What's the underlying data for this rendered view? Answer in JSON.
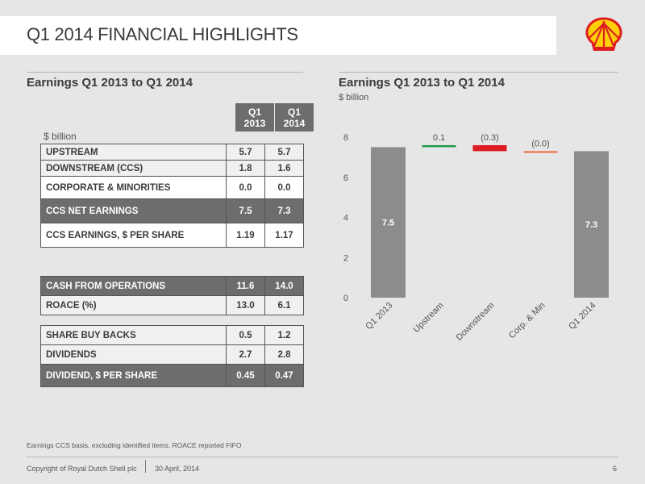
{
  "header": {
    "title": "Q1 2014 FINANCIAL HIGHLIGHTS"
  },
  "left": {
    "section_title": "Earnings Q1 2013 to Q1 2014",
    "unit": "$ billion",
    "col1": [
      "Q1",
      "2013"
    ],
    "col2": [
      "Q1",
      "2014"
    ],
    "rows1": [
      {
        "label": "UPSTREAM",
        "a": "5.7",
        "b": "5.7",
        "style": "light"
      },
      {
        "label": "DOWNSTREAM (CCS)",
        "a": "1.8",
        "b": "1.6",
        "style": "light"
      },
      {
        "label": "CORPORATE & MINORITIES",
        "a": "0.0",
        "b": "0.0",
        "style": "white"
      },
      {
        "label": "CCS NET EARNINGS",
        "a": "7.5",
        "b": "7.3",
        "style": "dark"
      },
      {
        "label": "CCS EARNINGS, $ PER SHARE",
        "a": "1.19",
        "b": "1.17",
        "style": "white"
      }
    ],
    "rows2": [
      {
        "label": "CASH FROM OPERATIONS",
        "a": "11.6",
        "b": "14.0",
        "style": "dark"
      },
      {
        "label": "ROACE (%)",
        "a": "13.0",
        "b": "6.1",
        "style": "white"
      }
    ],
    "rows3": [
      {
        "label": "SHARE BUY BACKS",
        "a": "0.5",
        "b": "1.2",
        "style": "light"
      },
      {
        "label": "DIVIDENDS",
        "a": "2.7",
        "b": "2.8",
        "style": "light"
      },
      {
        "label": "DIVIDEND, $ PER SHARE",
        "a": "0.45",
        "b": "0.47",
        "style": "dark"
      }
    ]
  },
  "right": {
    "section_title": "Earnings Q1 2013 to Q1 2014",
    "unit": "$ billion"
  },
  "chart_data": {
    "type": "bar",
    "subtype": "waterfall",
    "title": "Earnings Q1 2013 to Q1 2014",
    "ylabel": "$ billion",
    "ylim": [
      0,
      8
    ],
    "yticks": [
      0,
      2,
      4,
      6,
      8
    ],
    "grid": false,
    "categories": [
      "Q1 2013",
      "Upstream",
      "Downstream",
      "Corp. & Min",
      "Q1 2014"
    ],
    "values": [
      7.5,
      0.1,
      -0.3,
      0.0,
      7.3
    ],
    "labels": [
      "7.5",
      "0.1",
      "(0.3)",
      "(0.0)",
      "7.3"
    ],
    "kinds": [
      "total",
      "delta",
      "delta",
      "delta",
      "total"
    ],
    "colors": {
      "total": "#8c8c8c",
      "increase": "#1e9a4a",
      "decrease": "#dd1d21",
      "neutral": "#e8693a"
    }
  },
  "footnote": "Earnings CCS basis, excluding identified items, ROACE reported FIFO",
  "footer": {
    "copyright": "Copyright of Royal Dutch Shell plc",
    "date": "30 April, 2014",
    "page": "6"
  }
}
